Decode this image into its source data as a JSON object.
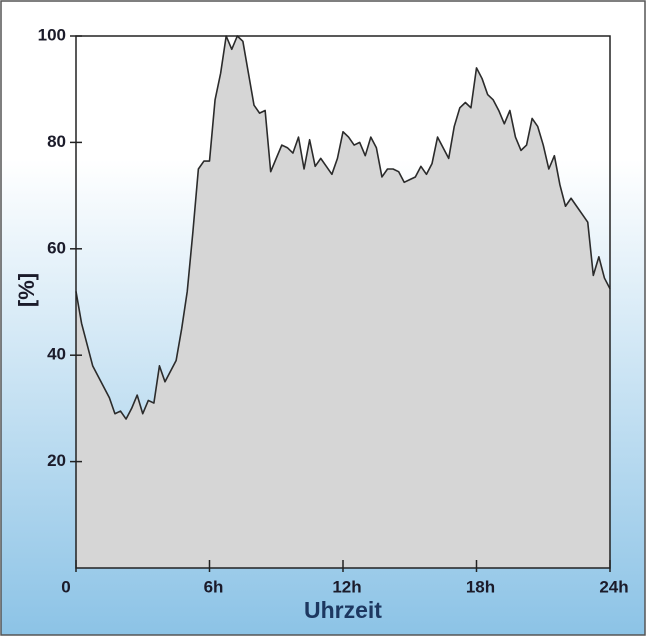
{
  "chart_data": {
    "type": "area",
    "y_label": "[%]",
    "x_label": "Uhrzeit",
    "x": [
      0,
      0.25,
      0.5,
      0.75,
      1,
      1.25,
      1.5,
      1.75,
      2,
      2.25,
      2.5,
      2.75,
      3,
      3.25,
      3.5,
      3.75,
      4,
      4.25,
      4.5,
      4.75,
      5,
      5.25,
      5.5,
      5.75,
      6,
      6.25,
      6.5,
      6.75,
      7,
      7.25,
      7.5,
      7.75,
      8,
      8.25,
      8.5,
      8.75,
      9,
      9.25,
      9.5,
      9.75,
      10,
      10.25,
      10.5,
      10.75,
      11,
      11.25,
      11.5,
      11.75,
      12,
      12.25,
      12.5,
      12.75,
      13,
      13.25,
      13.5,
      13.75,
      14,
      14.25,
      14.5,
      14.75,
      15,
      15.25,
      15.5,
      15.75,
      16,
      16.25,
      16.5,
      16.75,
      17,
      17.25,
      17.5,
      17.75,
      18,
      18.25,
      18.5,
      18.75,
      19,
      19.25,
      19.5,
      19.75,
      20,
      20.25,
      20.5,
      20.75,
      21,
      21.25,
      21.5,
      21.75,
      22,
      22.25,
      22.5,
      22.75,
      23,
      23.25,
      23.5,
      23.75,
      24
    ],
    "values": [
      52,
      46,
      42,
      38,
      36,
      34,
      32,
      29,
      29.5,
      28,
      30,
      32.5,
      29,
      31.5,
      31,
      38,
      35,
      37,
      39,
      45,
      52,
      63,
      75,
      76.5,
      76.5,
      88,
      93,
      100,
      97.5,
      100,
      99,
      93,
      87,
      85.5,
      86,
      74.5,
      77,
      79.5,
      79,
      78,
      81,
      75,
      80.5,
      75.5,
      77,
      75.5,
      74,
      77,
      82,
      81,
      79.5,
      80,
      77.5,
      81,
      79,
      73.5,
      75,
      75,
      74.5,
      72.5,
      73,
      73.5,
      75.5,
      74,
      76,
      81,
      79,
      77,
      83,
      86.5,
      87.5,
      86.5,
      94,
      92,
      89,
      88,
      86,
      83.5,
      86,
      81,
      78.5,
      79.5,
      84.5,
      83,
      79.5,
      75,
      77.5,
      72,
      68,
      69.5,
      68,
      66.5,
      65,
      55,
      58.5,
      54.5,
      52.5
    ],
    "color": "#d6d6d6",
    "line_color": "#2b2b2b",
    "xlim": [
      0,
      24
    ],
    "xticks": [
      0,
      {
        "value": 6,
        "label": "6h"
      },
      {
        "value": 12,
        "label": "12h"
      },
      {
        "value": 18,
        "label": "18h"
      },
      {
        "value": 24,
        "label": "24h"
      }
    ],
    "ylim": [
      0,
      100
    ],
    "yticks": [
      20,
      40,
      60,
      80,
      100
    ]
  }
}
